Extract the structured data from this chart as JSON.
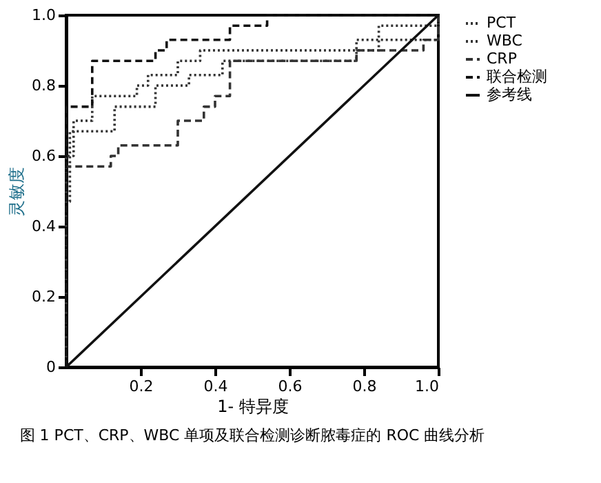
{
  "chart_data": {
    "type": "step",
    "xlabel": "1- 特异度",
    "ylabel": "灵敏度",
    "annotations": [
      "图 1  PCT、CRP、WBC 单项及联合检测诊断脓毒症的 ROC 曲线分析"
    ],
    "xlim": [
      0,
      1
    ],
    "ylim": [
      0,
      1
    ],
    "xticks": [
      0.2,
      0.4,
      0.6,
      0.8,
      {
        "value": 1,
        "label": "1.0"
      }
    ],
    "yticks": [
      0,
      0.2,
      0.4,
      0.6,
      0.8,
      {
        "value": 1,
        "label": "1.0"
      }
    ],
    "grid": false,
    "legend": "top right",
    "marker": "none",
    "series": [
      {
        "name": "PCT",
        "color": "#333333",
        "line_style": "dotted",
        "x": [
          0,
          0,
          0.02,
          0.07,
          0.19,
          0.22,
          0.3,
          0.36,
          0.84,
          1
        ],
        "values": [
          0,
          0.6,
          0.7,
          0.77,
          0.8,
          0.83,
          0.87,
          0.9,
          0.93,
          1
        ]
      },
      {
        "name": "WBC",
        "color": "#333333",
        "line_style": "dotted",
        "x": [
          0,
          0,
          0.01,
          0.13,
          0.24,
          0.33,
          0.42,
          0.78,
          0.84,
          1
        ],
        "values": [
          0,
          0.47,
          0.67,
          0.74,
          0.8,
          0.83,
          0.87,
          0.93,
          0.97,
          1
        ]
      },
      {
        "name": "CRP",
        "color": "#333333",
        "line_style": "dashed",
        "x": [
          0,
          0,
          0.12,
          0.14,
          0.3,
          0.37,
          0.4,
          0.44,
          0.78,
          0.96,
          1
        ],
        "values": [
          0,
          0.57,
          0.6,
          0.63,
          0.7,
          0.74,
          0.77,
          0.87,
          0.9,
          0.93,
          1
        ]
      },
      {
        "name": "联合检测",
        "color": "#111111",
        "line_style": "dashed",
        "x": [
          0,
          0,
          0.07,
          0.24,
          0.27,
          0.44,
          0.54,
          1
        ],
        "values": [
          0,
          0.74,
          0.87,
          0.9,
          0.93,
          0.97,
          1,
          1
        ]
      },
      {
        "name": "参考线",
        "type": "line",
        "color": "#111111",
        "line_style": "solid",
        "x": [
          0,
          1
        ],
        "values": [
          0,
          1
        ]
      }
    ]
  }
}
